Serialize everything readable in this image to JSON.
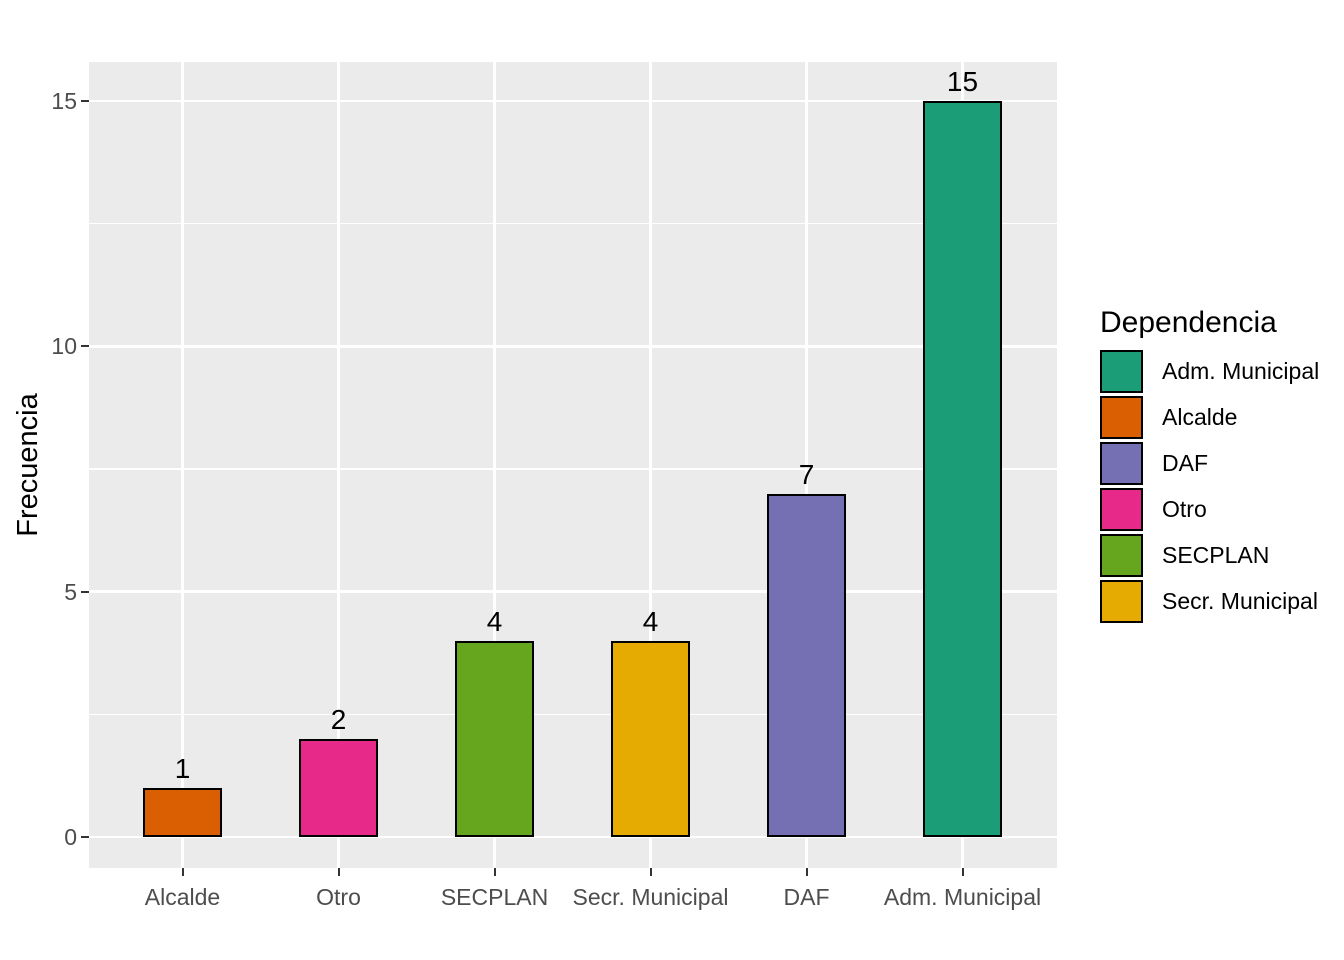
{
  "chart_data": {
    "type": "bar",
    "title": "",
    "xlabel": "",
    "ylabel": "Frecuencia",
    "categories": [
      "Alcalde",
      "Otro",
      "SECPLAN",
      "Secr. Municipal",
      "DAF",
      "Adm. Municipal"
    ],
    "values": [
      1,
      2,
      4,
      4,
      7,
      15
    ],
    "bar_labels": [
      "1",
      "2",
      "4",
      "4",
      "7",
      "15"
    ],
    "bar_colors": [
      "#D95F02",
      "#E7298A",
      "#66A61E",
      "#E6AB02",
      "#7570B3",
      "#1B9E77"
    ],
    "y_axis": {
      "ticks": [
        0,
        5,
        10,
        15
      ],
      "tick_labels": [
        "0",
        "5",
        "10",
        "15"
      ],
      "minor_ticks": [
        2.5,
        7.5,
        12.5
      ],
      "range": [
        -0.63,
        15.79
      ]
    },
    "legend": {
      "title": "Dependencia",
      "position": "right",
      "entries": [
        {
          "label": "Adm. Municipal",
          "color": "#1B9E77"
        },
        {
          "label": "Alcalde",
          "color": "#D95F02"
        },
        {
          "label": "DAF",
          "color": "#7570B3"
        },
        {
          "label": "Otro",
          "color": "#E7298A"
        },
        {
          "label": "SECPLAN",
          "color": "#66A61E"
        },
        {
          "label": "Secr. Municipal",
          "color": "#E6AB02"
        }
      ]
    },
    "style": {
      "background": "#FFFFFF",
      "panel_bg": "#EBEBEB",
      "grid_color": "#FFFFFF",
      "bar_border_color": "#000000",
      "axis_text_color": "#4D4D4D",
      "tick_mark_color": "#333333",
      "text_color": "#000000"
    },
    "grid": true
  }
}
